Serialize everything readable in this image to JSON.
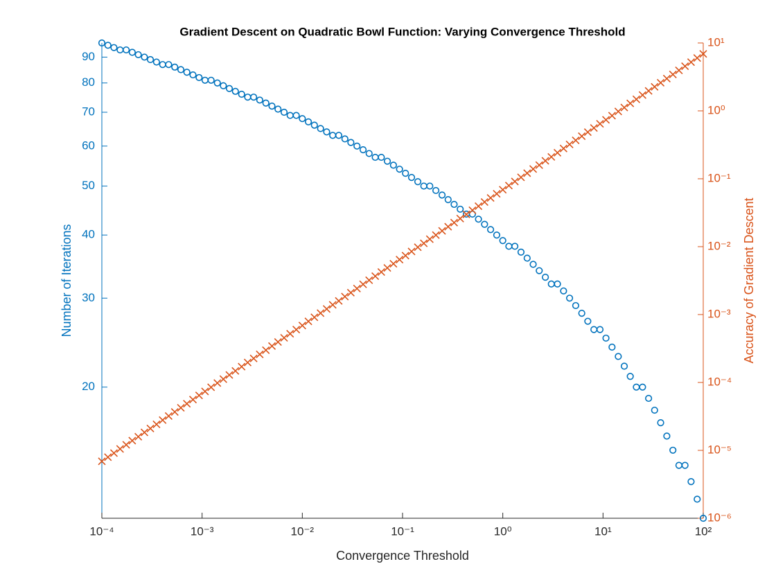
{
  "chart_data": {
    "type": "scatter",
    "title": "Gradient Descent on Quadratic Bowl Function: Varying Convergence Threshold",
    "xlabel": "Convergence Threshold",
    "ylabel": "Number of Iterations",
    "y2label": "Accuracy of Gradient Descent",
    "xscale": "log",
    "yscale": "log",
    "y2scale": "log",
    "xlim": [
      0.0001,
      100
    ],
    "xticks": [
      {
        "value": 0.0001,
        "label": "10⁻⁴"
      },
      {
        "value": 0.001,
        "label": "10⁻³"
      },
      {
        "value": 0.01,
        "label": "10⁻²"
      },
      {
        "value": 0.1,
        "label": "10⁻¹"
      },
      {
        "value": 1,
        "label": "10⁰"
      },
      {
        "value": 10,
        "label": "10¹"
      },
      {
        "value": 100,
        "label": "10²"
      }
    ],
    "ylim": [
      11,
      96
    ],
    "yticks": [
      20,
      30,
      40,
      50,
      60,
      70,
      80,
      90
    ],
    "y2lim": [
      1e-06,
      10
    ],
    "y2ticks": [
      {
        "value": 1e-06,
        "label": "10⁻⁶"
      },
      {
        "value": 1e-05,
        "label": "10⁻⁵"
      },
      {
        "value": 0.0001,
        "label": "10⁻⁴"
      },
      {
        "value": 0.001,
        "label": "10⁻³"
      },
      {
        "value": 0.01,
        "label": "10⁻²"
      },
      {
        "value": 0.1,
        "label": "10⁻¹"
      },
      {
        "value": 1,
        "label": "10⁰"
      },
      {
        "value": 10,
        "label": "10¹"
      }
    ],
    "x": [
      0.0001,
      0.000115,
      0.000132,
      0.000152,
      0.000175,
      0.000201,
      0.000231,
      0.000266,
      0.000305,
      0.000351,
      0.000404,
      0.000464,
      0.000534,
      0.000614,
      0.000705,
      0.000811,
      0.000933,
      0.00107,
      0.00123,
      0.00142,
      0.00163,
      0.00187,
      0.00215,
      0.00248,
      0.00285,
      0.00327,
      0.00376,
      0.00433,
      0.00498,
      0.00572,
      0.00658,
      0.00756,
      0.0087,
      0.01,
      0.0115,
      0.0132,
      0.0152,
      0.0175,
      0.0201,
      0.0231,
      0.0266,
      0.0305,
      0.0351,
      0.0404,
      0.0464,
      0.0534,
      0.0614,
      0.0705,
      0.0811,
      0.0933,
      0.107,
      0.123,
      0.142,
      0.163,
      0.187,
      0.215,
      0.248,
      0.285,
      0.327,
      0.376,
      0.433,
      0.498,
      0.572,
      0.658,
      0.756,
      0.87,
      1,
      1.15,
      1.32,
      1.52,
      1.75,
      2.01,
      2.31,
      2.66,
      3.05,
      3.51,
      4.04,
      4.64,
      5.34,
      6.14,
      7.05,
      8.11,
      9.33,
      10.7,
      12.3,
      14.2,
      16.3,
      18.7,
      21.5,
      24.8,
      28.5,
      32.7,
      37.6,
      43.3,
      49.8,
      57.2,
      65.8,
      75.6,
      87,
      100
    ],
    "series": [
      {
        "color": "#0072BD",
        "marker": "o",
        "axis": "y",
        "values": [
          96,
          95,
          94,
          93,
          93,
          92,
          91,
          90,
          89,
          88,
          87,
          87,
          86,
          85,
          84,
          83,
          82,
          81,
          81,
          80,
          79,
          78,
          77,
          76,
          75,
          75,
          74,
          73,
          72,
          71,
          70,
          69,
          69,
          68,
          67,
          66,
          65,
          64,
          63,
          63,
          62,
          61,
          60,
          59,
          58,
          57,
          57,
          56,
          55,
          54,
          53,
          52,
          51,
          50,
          50,
          49,
          48,
          47,
          46,
          45,
          44,
          44,
          43,
          42,
          41,
          40,
          39,
          38,
          38,
          37,
          36,
          35,
          34,
          33,
          32,
          32,
          31,
          30,
          29,
          28,
          27,
          26,
          26,
          25,
          24,
          23,
          22,
          21,
          20,
          20,
          19,
          18,
          17,
          16,
          15,
          14,
          14,
          13,
          12,
          11
        ]
      },
      {
        "color": "#D95319",
        "marker": "x",
        "axis": "y2",
        "values": [
          6.9e-06,
          7.94e-06,
          9.11e-06,
          1.05e-05,
          1.21e-05,
          1.39e-05,
          1.59e-05,
          1.84e-05,
          2.1e-05,
          2.42e-05,
          2.79e-05,
          3.2e-05,
          3.68e-05,
          4.24e-05,
          4.86e-05,
          5.6e-05,
          6.44e-05,
          7.38e-05,
          8.49e-05,
          9.8e-05,
          0.000112,
          0.000129,
          0.000148,
          0.000171,
          0.000197,
          0.000226,
          0.000259,
          0.000299,
          0.000344,
          0.000395,
          0.000454,
          0.000522,
          0.0006,
          0.00069,
          0.000794,
          0.000911,
          0.00105,
          0.00121,
          0.00139,
          0.00159,
          0.00184,
          0.0021,
          0.00242,
          0.00279,
          0.0032,
          0.00368,
          0.00424,
          0.00486,
          0.0056,
          0.00644,
          0.00738,
          0.00849,
          0.0098,
          0.0112,
          0.0129,
          0.0148,
          0.0171,
          0.0197,
          0.0226,
          0.0259,
          0.0299,
          0.0344,
          0.0395,
          0.0454,
          0.0522,
          0.06,
          0.069,
          0.0794,
          0.0911,
          0.105,
          0.121,
          0.139,
          0.159,
          0.184,
          0.21,
          0.242,
          0.279,
          0.32,
          0.368,
          0.424,
          0.486,
          0.56,
          0.644,
          0.738,
          0.849,
          0.98,
          1.12,
          1.29,
          1.48,
          1.71,
          1.97,
          2.26,
          2.59,
          2.99,
          3.44,
          3.95,
          4.54,
          5.22,
          6,
          6.9
        ]
      }
    ]
  }
}
